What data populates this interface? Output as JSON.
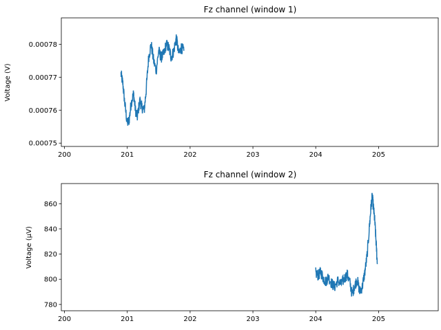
{
  "chart_data": [
    {
      "type": "line",
      "title": "Fz channel (window 1)",
      "xlabel": "",
      "ylabel": "Voltage (V)",
      "xlim": [
        199.95,
        205.95
      ],
      "ylim": [
        0.000749,
        0.000788
      ],
      "xticks": [
        200,
        201,
        202,
        203,
        204,
        205
      ],
      "yticks": [
        0.00075,
        0.00076,
        0.00077,
        0.00078
      ],
      "ytick_labels": [
        "0.00075",
        "0.00076",
        "0.00077",
        "0.00078"
      ],
      "grid": false,
      "color": "#1f77b4",
      "series": [
        {
          "x": [
            200.9,
            200.93,
            200.96,
            201.0,
            201.03,
            201.06,
            201.1,
            201.13,
            201.16,
            201.2,
            201.23,
            201.27,
            201.3,
            201.34,
            201.38,
            201.42,
            201.46,
            201.5,
            201.54,
            201.58,
            201.62,
            201.66,
            201.7,
            201.74,
            201.78,
            201.82,
            201.86,
            201.9
          ],
          "y": [
            0.000771,
            0.000768,
            0.000762,
            0.000756,
            0.000757,
            0.000762,
            0.000765,
            0.00076,
            0.000758,
            0.000763,
            0.000761,
            0.00076,
            0.000766,
            0.000776,
            0.00078,
            0.000775,
            0.000772,
            0.000778,
            0.000776,
            0.000777,
            0.00078,
            0.000779,
            0.000776,
            0.000778,
            0.000782,
            0.000777,
            0.000779,
            0.000778
          ]
        }
      ]
    },
    {
      "type": "line",
      "title": "Fz channel (window 2)",
      "xlabel": "",
      "ylabel": "Voltage (µV)",
      "xlim": [
        199.95,
        205.95
      ],
      "ylim": [
        775,
        876
      ],
      "xticks": [
        200,
        201,
        202,
        203,
        204,
        205
      ],
      "yticks": [
        780,
        800,
        820,
        840,
        860
      ],
      "ytick_labels": [
        "780",
        "800",
        "820",
        "840",
        "860"
      ],
      "grid": false,
      "color": "#1f77b4",
      "series": [
        {
          "x": [
            204.0,
            204.04,
            204.08,
            204.12,
            204.16,
            204.2,
            204.25,
            204.3,
            204.35,
            204.4,
            204.45,
            204.5,
            204.54,
            204.58,
            204.62,
            204.66,
            204.7,
            204.74,
            204.78,
            204.82,
            204.86,
            204.88,
            204.9,
            204.92,
            204.94,
            204.96,
            204.98
          ],
          "y": [
            805,
            803,
            806,
            801,
            798,
            802,
            797,
            794,
            799,
            796,
            800,
            804,
            798,
            788,
            795,
            800,
            790,
            794,
            805,
            820,
            845,
            858,
            866,
            856,
            846,
            830,
            812
          ]
        }
      ]
    }
  ]
}
